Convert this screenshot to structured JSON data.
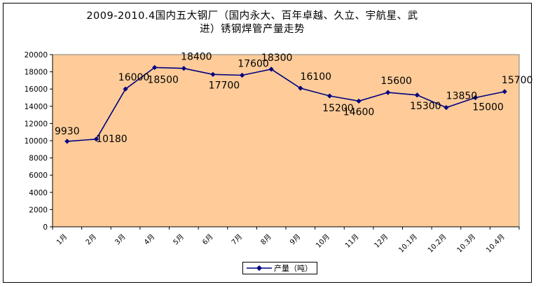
{
  "colors": {
    "plot_bg": "#FFCC99",
    "line": "#000080",
    "text": "#000000"
  },
  "chart_data": {
    "type": "line",
    "title": "2009-2010.4国内五大钢厂（国内永大、百年卓越、久立、宇航星、武进）锈钢焊管产量走势",
    "title_lines": [
      "2009-2010.4国内五大钢厂（国内永大、百年卓越、久立、宇航星、武",
      "进）锈钢焊管产量走势"
    ],
    "categories": [
      "1月",
      "2月",
      "3月",
      "4月",
      "5月",
      "6月",
      "7月",
      "8月",
      "9月",
      "10月",
      "11月",
      "12月",
      "10.1月",
      "10.2月",
      "10.3月",
      "10.4月"
    ],
    "series": [
      {
        "name": "产量（吨）",
        "values": [
          9930,
          10180,
          16000,
          18500,
          18400,
          17700,
          17600,
          18300,
          16100,
          15200,
          14600,
          15600,
          15300,
          13850,
          15000,
          15700
        ]
      }
    ],
    "y_ticks": [
      "0",
      "2000",
      "4000",
      "6000",
      "8000",
      "10000",
      "12000",
      "14000",
      "16000",
      "18000",
      "20000"
    ],
    "ylim": [
      0,
      20000
    ],
    "xlabel": "",
    "ylabel": "",
    "grid": false,
    "legend_position": "bottom"
  }
}
